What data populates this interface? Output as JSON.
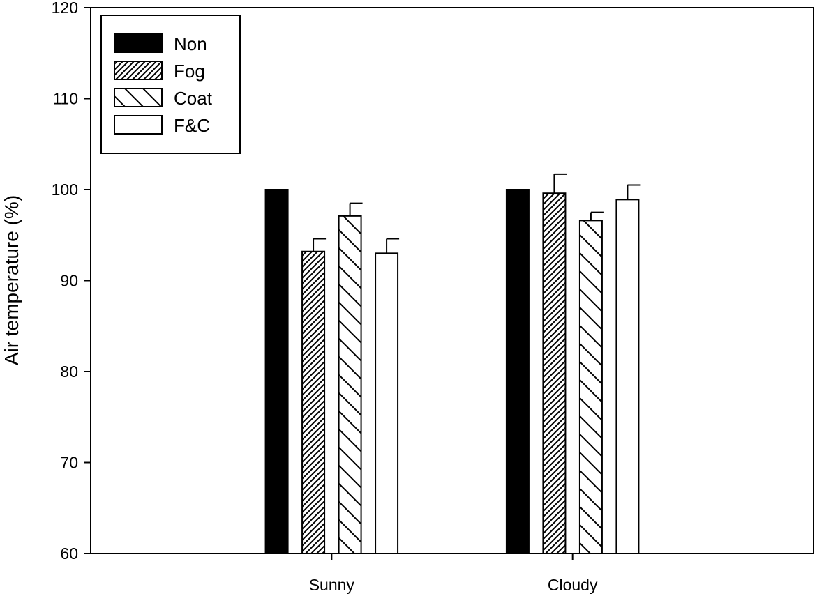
{
  "chart_data": {
    "type": "bar",
    "title": "",
    "xlabel": "",
    "ylabel": "Air temperature (%)",
    "ylim": [
      60,
      120
    ],
    "yticks": [
      60,
      70,
      80,
      90,
      100,
      110,
      120
    ],
    "categories": [
      "Sunny",
      "Cloudy"
    ],
    "grid": false,
    "legend_position": "top-left",
    "series": [
      {
        "name": "Non",
        "pattern": "solid-black",
        "values": [
          100,
          100
        ],
        "errors": [
          0,
          0
        ]
      },
      {
        "name": "Fog",
        "pattern": "dense-diagonal-hatch",
        "values": [
          93.2,
          99.6
        ],
        "errors": [
          1.4,
          2.1
        ]
      },
      {
        "name": "Coat",
        "pattern": "sparse-back-diagonal-hatch",
        "values": [
          97.1,
          96.6
        ],
        "errors": [
          1.4,
          0.9
        ]
      },
      {
        "name": "F&C",
        "pattern": "white",
        "values": [
          93.0,
          98.9
        ],
        "errors": [
          1.6,
          1.6
        ]
      }
    ]
  }
}
